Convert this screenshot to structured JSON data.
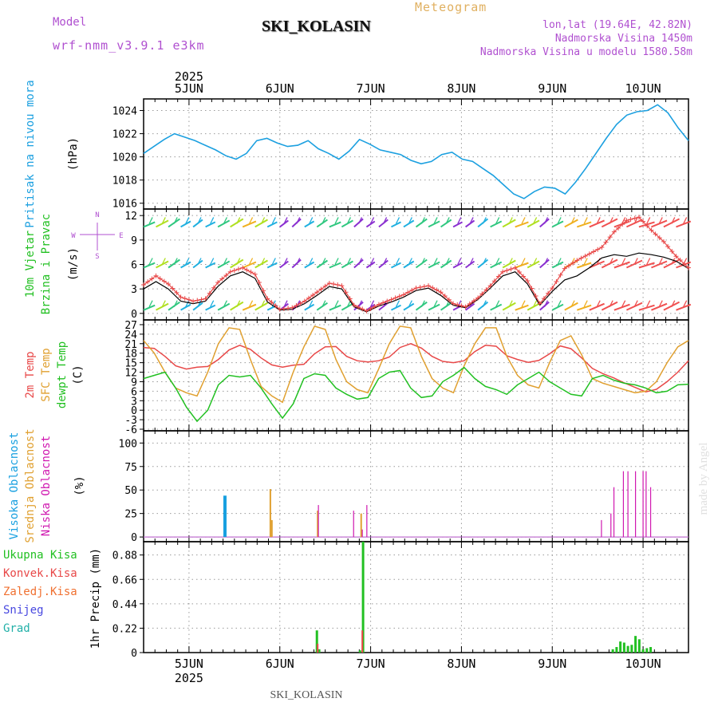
{
  "header": {
    "title": "SKI_KOLASIN",
    "model_label": "Model",
    "model_name": "wrf-nmm_v3.9.1 e3km",
    "subtitle": "Meteogram",
    "lonlat": "lon,lat (19.64E, 42.82N)",
    "elevation": "Nadmorska Visina 1450m",
    "model_elevation": "Nadmorska Visina u modelu 1580.58m",
    "watermark": "made by Angel",
    "footer": "SKI_KOLASIN"
  },
  "colors": {
    "pressure": "#1ca0e0",
    "temp2m": "#e84848",
    "tempsfc": "#e0a030",
    "dewpt": "#22c022",
    "cloud_high": "#18a0e0",
    "cloud_mid": "#e0a030",
    "cloud_low": "#d018b0",
    "precip": "#22c022",
    "wind_speed": "#e84848",
    "wind_gust": "#000000",
    "grid": "#9a9a9a",
    "purple_text": "#b050d0"
  },
  "chart_data": [
    {
      "type": "line",
      "panel": "pressure",
      "ylabel_lines": [
        "Pritisak na nivou mora",
        "(hPa)"
      ],
      "ylim": [
        1015.5,
        1025
      ],
      "yticks": [
        1016,
        1018,
        1020,
        1022,
        1024
      ],
      "x_start": "2025-06-04 12:00",
      "x_step_hours": 3,
      "series": [
        {
          "name": "MSLP",
          "values": [
            1020.3,
            1020.9,
            1021.5,
            1022.0,
            1021.7,
            1021.4,
            1021.0,
            1020.6,
            1020.1,
            1019.8,
            1020.3,
            1021.4,
            1021.6,
            1021.2,
            1020.9,
            1021.0,
            1021.4,
            1020.7,
            1020.3,
            1019.8,
            1020.5,
            1021.5,
            1021.1,
            1020.6,
            1020.4,
            1020.2,
            1019.7,
            1019.4,
            1019.6,
            1020.2,
            1020.4,
            1019.8,
            1019.6,
            1019.0,
            1018.4,
            1017.6,
            1016.8,
            1016.4,
            1017.0,
            1017.4,
            1017.3,
            1016.8,
            1017.8,
            1019.0,
            1020.3,
            1021.6,
            1022.8,
            1023.6,
            1023.9,
            1024.0,
            1024.5,
            1023.8,
            1022.5,
            1021.4
          ]
        }
      ]
    },
    {
      "type": "line",
      "panel": "wind",
      "ylabel_lines": [
        "10m Vjetar",
        "Brzina i Pravac",
        "(m/s)"
      ],
      "compass": {
        "n": "N",
        "s": "S",
        "e": "E",
        "w": "W"
      },
      "ylim": [
        -0.8,
        12.8
      ],
      "yticks": [
        0,
        3,
        6,
        9,
        12
      ],
      "x_start": "2025-06-04 12:00",
      "x_step_hours": 3,
      "series": [
        {
          "name": "Wind speed",
          "values": [
            3.5,
            4.6,
            3.6,
            2.0,
            1.5,
            1.8,
            3.8,
            5.1,
            5.6,
            4.8,
            1.8,
            0.5,
            0.7,
            1.5,
            2.6,
            3.7,
            3.4,
            1.0,
            0.3,
            1.1,
            1.7,
            2.3,
            3.1,
            3.4,
            2.6,
            1.2,
            0.8,
            1.9,
            3.4,
            5.1,
            5.6,
            4.0,
            1.2,
            3.1,
            5.5,
            6.5,
            7.3,
            8.1,
            10.0,
            11.4,
            11.8,
            10.2,
            8.8,
            7.0,
            5.6
          ]
        },
        {
          "name": "Gust",
          "values": [
            3.0,
            3.9,
            3.0,
            1.5,
            1.2,
            1.5,
            3.3,
            4.6,
            5.1,
            4.3,
            1.4,
            0.4,
            0.5,
            1.2,
            2.2,
            3.3,
            3.0,
            0.8,
            0.2,
            0.9,
            1.4,
            2.0,
            2.8,
            3.1,
            2.2,
            1.0,
            0.7,
            1.7,
            3.1,
            4.6,
            5.1,
            3.6,
            1.0,
            2.7,
            4.1,
            4.6,
            5.6,
            6.8,
            7.2,
            7.0,
            7.4,
            7.2,
            6.9,
            6.4,
            5.5
          ]
        },
        {
          "name": "Barb row 1",
          "values": [
            0.8,
            0.8,
            0.8,
            0.8,
            0.8,
            0.8,
            0.8,
            0.8,
            0.8,
            0.8,
            0.8,
            0.8,
            0.8,
            0.8,
            0.8,
            0.8,
            0.8,
            0.8,
            0.8,
            0.8,
            0.8,
            0.8,
            0.8,
            0.8,
            0.8,
            0.8,
            0.8,
            0.8,
            0.8,
            0.8,
            0.8,
            0.8,
            0.8,
            0.8,
            0.8,
            0.8,
            0.8,
            0.8,
            0.8,
            0.8,
            0.8,
            0.8,
            0.8,
            0.8,
            0.8
          ]
        },
        {
          "name": "Barb row 2",
          "values": [
            6.0,
            6.0,
            6.0,
            6.0,
            6.0,
            6.0,
            6.0,
            6.0,
            6.0,
            6.0,
            6.0,
            6.0,
            6.0,
            6.0,
            6.0,
            6.0,
            6.0,
            6.0,
            6.0,
            6.0,
            6.0,
            6.0,
            6.0,
            6.0,
            6.0,
            6.0,
            6.0,
            6.0,
            6.0,
            6.0,
            6.0,
            6.0,
            6.0,
            6.0,
            6.0,
            6.0,
            6.0,
            6.0,
            6.0,
            6.0,
            6.0,
            6.0,
            6.0,
            6.0,
            6.0
          ]
        },
        {
          "name": "Barb row 3",
          "values": [
            11.0,
            11.0,
            11.0,
            11.0,
            11.0,
            11.0,
            11.0,
            11.0,
            11.0,
            11.0,
            11.0,
            11.0,
            11.0,
            11.0,
            11.0,
            11.0,
            11.0,
            11.0,
            11.0,
            11.0,
            11.0,
            11.0,
            11.0,
            11.0,
            11.0,
            11.0,
            11.0,
            11.0,
            11.0,
            11.0,
            11.0,
            11.0,
            11.0,
            11.0,
            11.0,
            11.0,
            11.0,
            11.0,
            11.0,
            11.0,
            11.0,
            11.0,
            11.0,
            11.0,
            11.0
          ]
        }
      ]
    },
    {
      "type": "line",
      "panel": "temperature",
      "ylabel_lines": [
        "2m Temp",
        "SFC Temp",
        "dewpt Temp",
        "(C)"
      ],
      "ylim": [
        -6.5,
        28.5
      ],
      "yticks": [
        -6,
        -3,
        0,
        3,
        6,
        9,
        12,
        15,
        18,
        21,
        24,
        27
      ],
      "x_start": "2025-06-04 12:00",
      "x_step_hours": 3,
      "series": [
        {
          "name": "2m Temp",
          "values": [
            19.8,
            19.5,
            17.0,
            14.0,
            13.0,
            13.6,
            13.8,
            16.0,
            19.0,
            20.5,
            19.2,
            16.5,
            14.3,
            13.6,
            14.2,
            14.5,
            17.8,
            20.0,
            20.1,
            17.0,
            15.6,
            15.2,
            15.6,
            16.8,
            19.8,
            21.0,
            19.6,
            17.0,
            15.4,
            15.0,
            15.6,
            18.5,
            20.5,
            20.2,
            17.2,
            16.0,
            15.1,
            15.7,
            17.8,
            20.3,
            19.4,
            16.5,
            13.2,
            11.5,
            10.2,
            8.6,
            7.2,
            5.8,
            6.6,
            9.0,
            12.0,
            15.6
          ]
        },
        {
          "name": "SFC Temp",
          "values": [
            22.0,
            18.0,
            12.0,
            7.0,
            5.5,
            4.5,
            12.0,
            21.0,
            26.0,
            25.5,
            16.0,
            7.5,
            4.5,
            2.5,
            12.0,
            20.0,
            26.5,
            25.5,
            16.0,
            9.0,
            6.5,
            5.5,
            13.0,
            21.0,
            26.5,
            26.0,
            17.0,
            10.0,
            7.0,
            5.5,
            14.0,
            21.0,
            26.0,
            26.0,
            17.0,
            11.0,
            8.0,
            7.0,
            15.0,
            22.0,
            23.5,
            17.5,
            10.0,
            8.5,
            7.5,
            6.5,
            5.5,
            6.0,
            9.0,
            15.0,
            20.0,
            22.0
          ]
        },
        {
          "name": "dewpt Temp",
          "values": [
            10.0,
            11.0,
            12.0,
            7.0,
            1.0,
            -3.5,
            0.0,
            8.0,
            11.0,
            10.5,
            11.0,
            7.0,
            2.0,
            -2.5,
            2.0,
            10.0,
            11.5,
            11.0,
            7.0,
            5.0,
            3.5,
            4.0,
            10.0,
            12.0,
            12.5,
            7.0,
            4.0,
            4.5,
            9.0,
            11.0,
            13.5,
            10.0,
            7.5,
            6.5,
            5.0,
            8.0,
            10.0,
            12.0,
            9.0,
            7.0,
            5.0,
            4.5,
            10.0,
            11.0,
            9.5,
            8.5,
            8.0,
            7.0,
            5.5,
            6.0,
            8.0,
            8.2
          ]
        }
      ]
    },
    {
      "type": "bar",
      "panel": "clouds",
      "ylabel_lines": [
        "Visoka Oblacnost",
        "Srednja Oblacnost",
        "Niska Oblacnost",
        "(%)"
      ],
      "ylim": [
        -5,
        113
      ],
      "yticks": [
        0,
        25,
        50,
        75,
        100
      ],
      "x_start": "2025-06-04 12:00",
      "x_unit": "hours",
      "series": [
        {
          "name": "Visoka Oblacnost",
          "x": [
            21.5
          ],
          "values": [
            44
          ]
        },
        {
          "name": "Srednja Oblacnost",
          "x": [
            33.5,
            33.9,
            46.0,
            57.5
          ],
          "values": [
            51,
            18,
            28,
            25
          ]
        },
        {
          "name": "Niska Oblacnost",
          "x": [
            46.2,
            55.5,
            57.8,
            59.0,
            121.0,
            123.5,
            124.3,
            126.8,
            128.0,
            130.0,
            132.0,
            132.8,
            134.0
          ],
          "values": [
            34,
            28,
            8,
            34,
            18,
            25,
            53,
            70,
            70,
            70,
            70,
            70,
            53
          ]
        }
      ]
    },
    {
      "type": "bar",
      "panel": "precip",
      "ylabel_lines": [
        "1hr Precip (mm)"
      ],
      "legend": [
        "Ukupna Kisa",
        "Konvek.Kisa",
        "Zaledj.Kisa",
        "Snijeg",
        "Grad"
      ],
      "ylim": [
        0,
        1.0
      ],
      "yticks": [
        0,
        0.22,
        0.44,
        0.66,
        0.88
      ],
      "x_start": "2025-06-04 12:00",
      "x_unit": "hours",
      "series": [
        {
          "name": "Ukupna Kisa",
          "x": [
            45.8,
            46.4,
            57.2,
            58.0,
            124.0,
            125.0,
            126.0,
            127.0,
            128.0,
            129.0,
            130.0,
            131.0,
            132.0,
            133.0,
            134.0
          ],
          "values": [
            0.2,
            0.03,
            0.02,
            1.0,
            0.03,
            0.05,
            0.1,
            0.09,
            0.06,
            0.07,
            0.15,
            0.12,
            0.03,
            0.04,
            0.05
          ]
        },
        {
          "name": "Konvek.Kisa",
          "x": [
            46.0,
            57.8
          ],
          "values": [
            0.08,
            0.2
          ]
        }
      ]
    }
  ],
  "time_axis": {
    "days": [
      "5JUN",
      "6JUN",
      "7JUN",
      "8JUN",
      "9JUN",
      "10JUN"
    ],
    "year": "2025"
  }
}
